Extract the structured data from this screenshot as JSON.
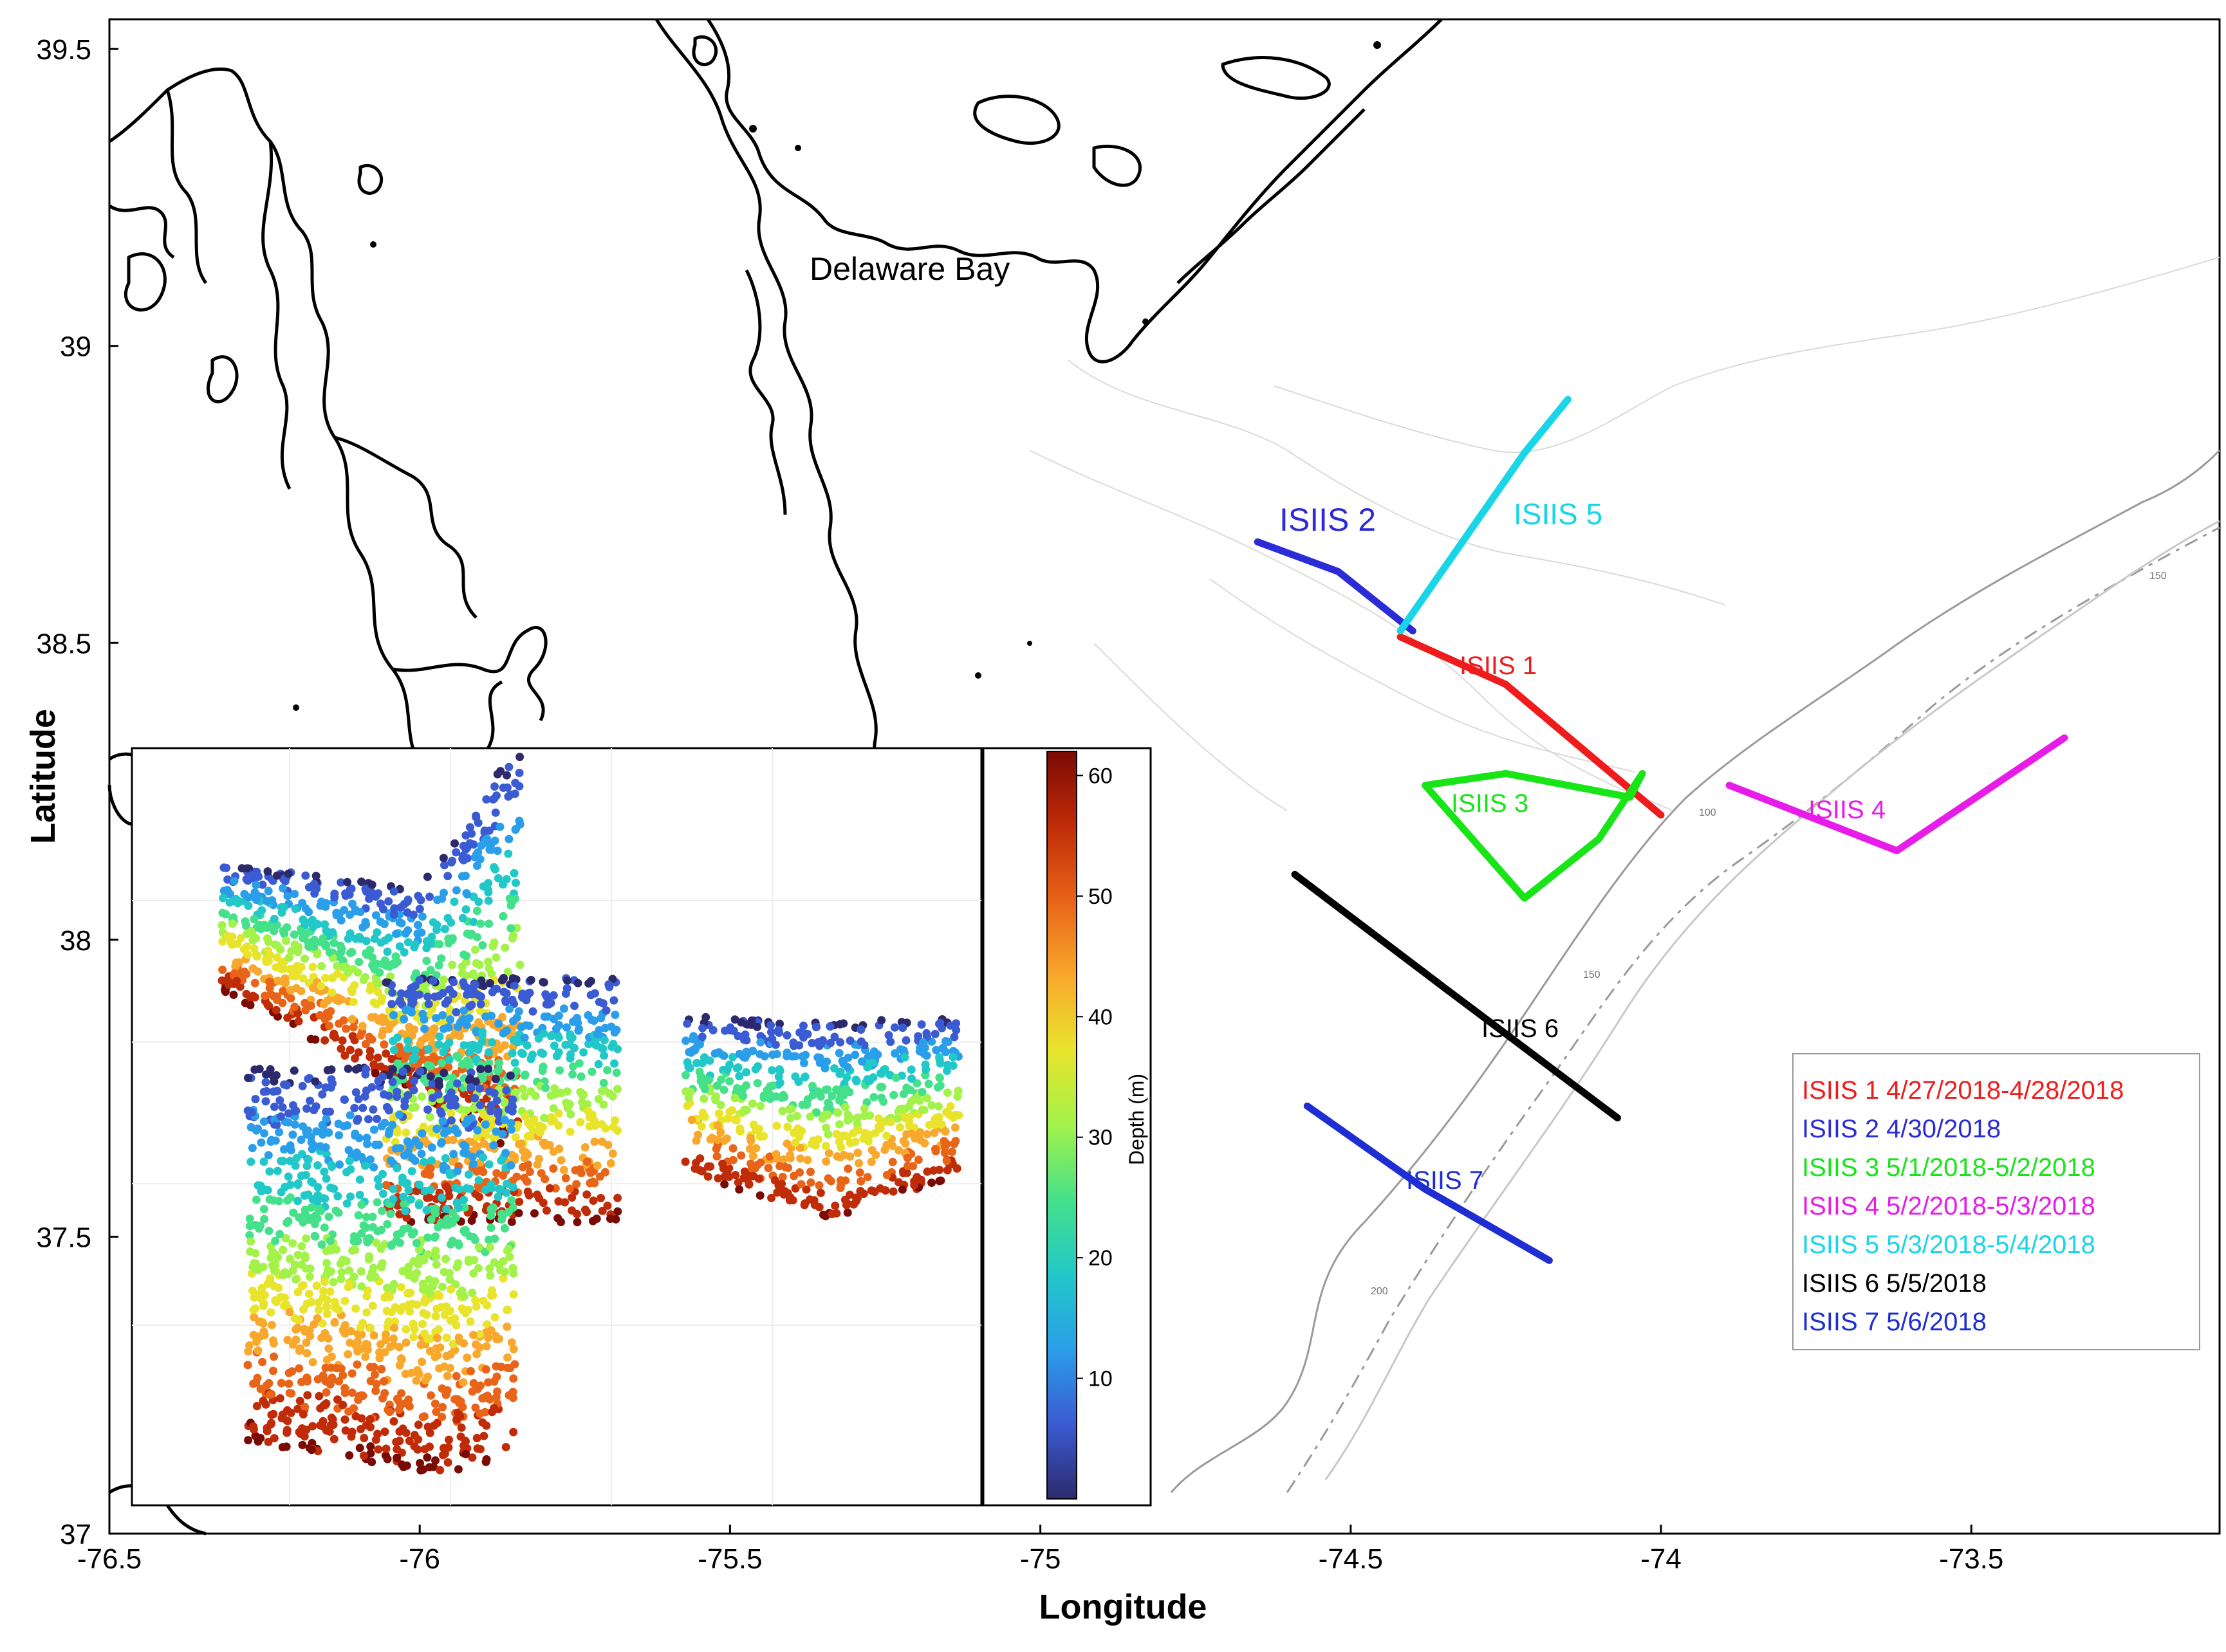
{
  "figure": {
    "xlabel": "Longitude",
    "ylabel": "Latitude",
    "place_label": "Delaware Bay"
  },
  "chart_data": {
    "type": "map",
    "xlim": [
      -76.5,
      -73.1
    ],
    "ylim": [
      37.0,
      39.55
    ],
    "x_ticks": [
      -76.5,
      -76,
      -75.5,
      -75,
      -74.5,
      -74,
      -73.5
    ],
    "x_tick_labels": [
      "-76.5",
      "-76",
      "-75.5",
      "-75",
      "-74.5",
      "-74",
      "-73.5"
    ],
    "y_ticks": [
      37,
      37.5,
      38,
      38.5,
      39,
      39.5
    ],
    "y_tick_labels": [
      "37",
      "37.5",
      "38",
      "38.5",
      "39",
      "39.5"
    ],
    "isobath_labels": [
      "100",
      "150",
      "200",
      "150"
    ],
    "transects": [
      {
        "name": "ISIIS 1",
        "label": "ISIIS 1",
        "color": "#ee1c1c",
        "lon": [
          -74.42,
          -74.25,
          -74.0
        ],
        "lat": [
          38.51,
          38.43,
          38.21
        ]
      },
      {
        "name": "ISIIS 2",
        "label": "ISIIS 2",
        "color": "#2b2bd8",
        "lon": [
          -74.65,
          -74.52,
          -74.4
        ],
        "lat": [
          38.67,
          38.62,
          38.52
        ]
      },
      {
        "name": "ISIIS 3",
        "label": "ISIIS 3",
        "color": "#18e418",
        "lon": [
          -74.38,
          -74.25,
          -74.05,
          -74.03,
          -74.1,
          -74.22,
          -74.38
        ],
        "lat": [
          38.26,
          38.28,
          38.24,
          38.28,
          38.17,
          38.07,
          38.26
        ]
      },
      {
        "name": "ISIIS 4",
        "label": "ISIIS 4",
        "color": "#e81ce8",
        "lon": [
          -73.89,
          -73.62,
          -73.35
        ],
        "lat": [
          38.26,
          38.15,
          38.34
        ]
      },
      {
        "name": "ISIIS 5",
        "label": "ISIIS 5",
        "color": "#18d6e8",
        "lon": [
          -74.42,
          -74.22,
          -74.15
        ],
        "lat": [
          38.52,
          38.82,
          38.91
        ]
      },
      {
        "name": "ISIIS 6",
        "label": "ISIIS 6",
        "color": "#000000",
        "lon": [
          -74.59,
          -74.35,
          -74.07
        ],
        "lat": [
          38.11,
          37.92,
          37.7
        ]
      },
      {
        "name": "ISIIS 7",
        "label": "ISIIS 7",
        "color": "#1e2ed2",
        "lon": [
          -74.57,
          -74.38,
          -74.18
        ],
        "lat": [
          37.72,
          37.58,
          37.46
        ]
      }
    ],
    "legend": [
      {
        "text": "ISIIS 1 4/27/2018-4/28/2018",
        "color": "#ee1c1c"
      },
      {
        "text": "ISIIS 2 4/30/2018",
        "color": "#2b2bd8"
      },
      {
        "text": "ISIIS 3 5/1/2018-5/2/2018",
        "color": "#18e418"
      },
      {
        "text": "ISIIS 4 5/2/2018-5/3/2018",
        "color": "#e81ce8"
      },
      {
        "text": "ISIIS 5 5/3/2018-5/4/2018",
        "color": "#18d6e8"
      },
      {
        "text": "ISIIS 6 5/5/2018",
        "color": "#000000"
      },
      {
        "text": "ISIIS 7 5/6/2018",
        "color": "#1e2ed2"
      }
    ],
    "legend_position": "lower-right",
    "inset": {
      "type": "scatter",
      "colorbar_label": "Depth (m)",
      "colorbar_range": [
        0,
        62
      ],
      "colorbar_ticks": [
        10,
        20,
        30,
        40,
        50,
        60
      ],
      "colorbar_tick_labels": [
        "10",
        "20",
        "30",
        "40",
        "50",
        "60"
      ],
      "depth_colors": [
        "#2c2a6c",
        "#3b5bd2",
        "#2a9ee8",
        "#22c8c8",
        "#45e08a",
        "#a2f24a",
        "#e8e42c",
        "#f8a82c",
        "#e86418",
        "#c02c08",
        "#7a0a04"
      ]
    }
  }
}
